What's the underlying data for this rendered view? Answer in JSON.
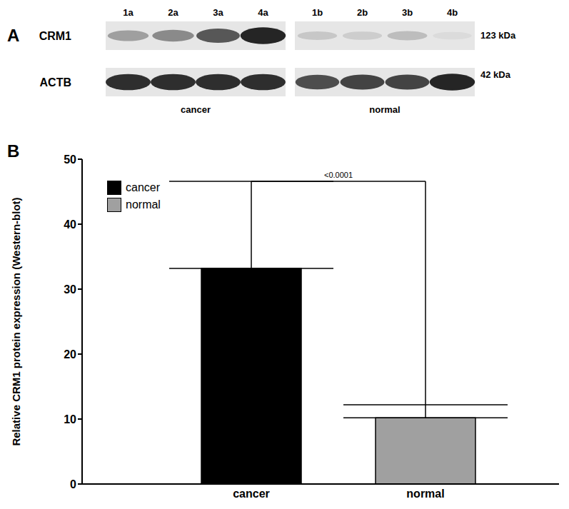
{
  "panel_a": {
    "panel_label": "A",
    "groups": [
      {
        "name": "cancer",
        "lanes": [
          "1a",
          "2a",
          "3a",
          "4a"
        ]
      },
      {
        "name": "normal",
        "lanes": [
          "1b",
          "2b",
          "3b",
          "4b"
        ]
      }
    ],
    "rows": [
      {
        "protein": "CRM1",
        "size": "123 kDa",
        "intensity": [
          [
            0.35,
            0.45,
            0.7,
            0.95
          ],
          [
            0.15,
            0.12,
            0.2,
            0.05
          ]
        ]
      },
      {
        "protein": "ACTB",
        "size": "42 kDa",
        "intensity": [
          [
            0.9,
            0.9,
            0.9,
            0.9
          ],
          [
            0.75,
            0.8,
            0.8,
            0.95
          ]
        ]
      }
    ]
  },
  "chart_data": {
    "type": "bar",
    "panel_label": "B",
    "y_label": "Relative CRM1 protein expression (Western-blot)",
    "categories": [
      "cancer",
      "normal"
    ],
    "values": [
      33.2,
      10.2
    ],
    "error": [
      13.4,
      2.0
    ],
    "colors": [
      "#000000",
      "#a0a0a0"
    ],
    "ylim": [
      0,
      50
    ],
    "yticks": [
      0,
      10,
      20,
      30,
      40,
      50
    ],
    "legend": "upper left",
    "annotation": "<0.0001"
  }
}
